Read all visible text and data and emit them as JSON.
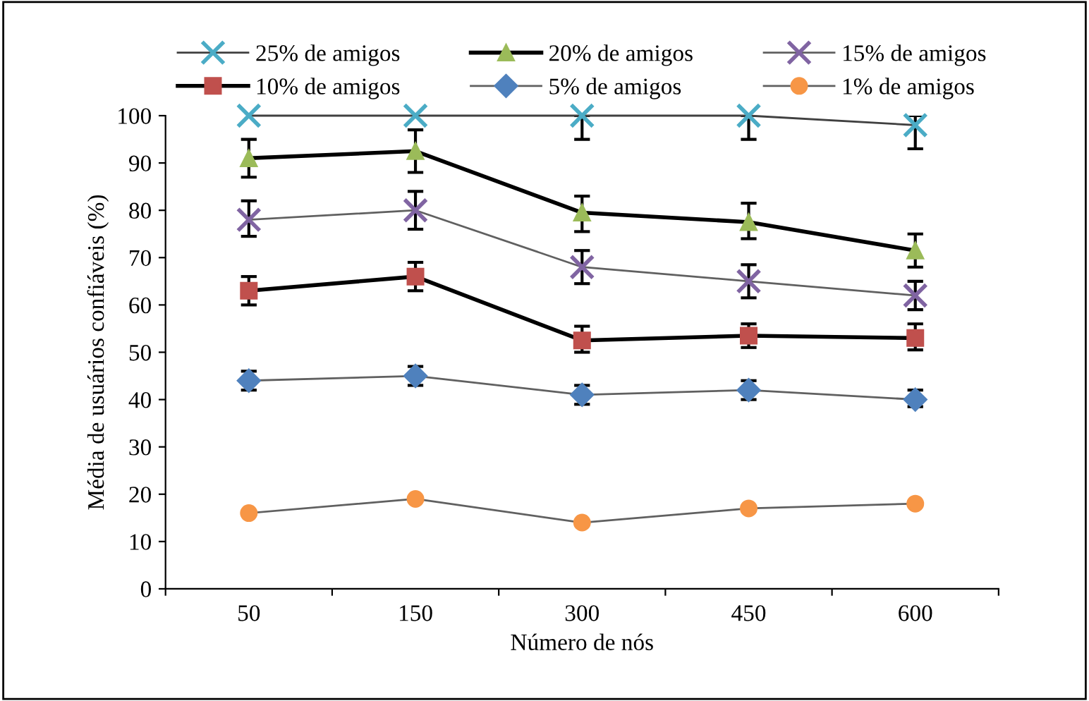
{
  "chart_data": {
    "type": "line",
    "xlabel": "Número de nós",
    "ylabel": "Média de usuários confiáveis (%)",
    "categories": [
      "50",
      "150",
      "300",
      "450",
      "600"
    ],
    "ylim": [
      0,
      100
    ],
    "yticks": [
      0,
      10,
      20,
      30,
      40,
      50,
      60,
      70,
      80,
      90,
      100
    ],
    "grid": false,
    "legend": "top",
    "series": [
      {
        "name": "25% de amigos",
        "color": "#4bacc6",
        "marker": "cross",
        "values": [
          100,
          100,
          100,
          100,
          98
        ],
        "errors": [
          null,
          null,
          [
            95,
            100
          ],
          [
            95,
            100
          ],
          [
            93,
            100
          ]
        ]
      },
      {
        "name": "20% de amigos",
        "color": "#9bbb59",
        "marker": "triangle",
        "values": [
          91,
          92.5,
          79.5,
          77.5,
          71.5
        ],
        "errors": [
          [
            87,
            95
          ],
          [
            88,
            97
          ],
          [
            75.5,
            83
          ],
          [
            74,
            81.5
          ],
          [
            68,
            75
          ]
        ]
      },
      {
        "name": "15% de amigos",
        "color": "#8064a2",
        "marker": "cross",
        "values": [
          78,
          80,
          68,
          65,
          62
        ],
        "errors": [
          [
            74.5,
            82
          ],
          [
            76,
            84
          ],
          [
            64.5,
            71.5
          ],
          [
            61.5,
            68.5
          ],
          [
            59,
            65
          ]
        ]
      },
      {
        "name": "10% de amigos",
        "color": "#c0504d",
        "marker": "square",
        "values": [
          63,
          66,
          52.5,
          53.5,
          53
        ],
        "errors": [
          [
            60,
            66
          ],
          [
            63,
            69
          ],
          [
            50,
            55.5
          ],
          [
            51,
            56
          ],
          [
            50.5,
            56
          ]
        ]
      },
      {
        "name": "5% de amigos",
        "color": "#4f81bd",
        "marker": "diamond",
        "values": [
          44,
          45,
          41,
          42,
          40
        ],
        "errors": [
          [
            42,
            46
          ],
          [
            43,
            47
          ],
          [
            39,
            43
          ],
          [
            40,
            44
          ],
          [
            38.5,
            42
          ]
        ]
      },
      {
        "name": "1% de amigos",
        "color": "#f79646",
        "marker": "circle",
        "values": [
          16,
          19,
          14,
          17,
          18
        ]
      }
    ]
  }
}
